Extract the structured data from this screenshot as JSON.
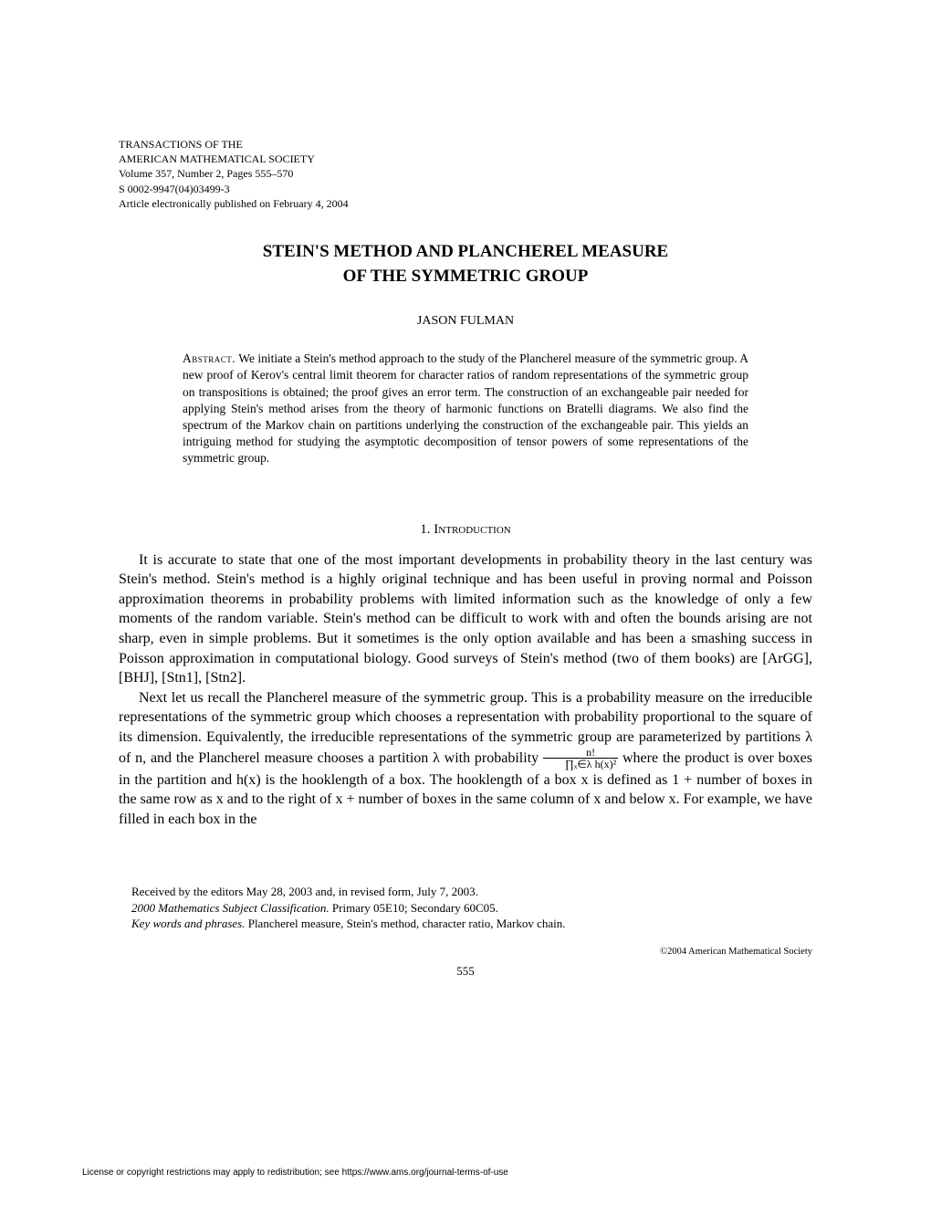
{
  "header": {
    "line1": "TRANSACTIONS OF THE",
    "line2": "AMERICAN MATHEMATICAL SOCIETY",
    "line3": "Volume 357, Number 2, Pages 555–570",
    "line4": "S 0002-9947(04)03499-3",
    "line5": "Article electronically published on February 4, 2004"
  },
  "title": {
    "line1": "STEIN'S METHOD AND PLANCHEREL MEASURE",
    "line2": "OF THE SYMMETRIC GROUP"
  },
  "author": "JASON FULMAN",
  "abstract": {
    "label": "Abstract.",
    "text": "We initiate a Stein's method approach to the study of the Plancherel measure of the symmetric group. A new proof of Kerov's central limit theorem for character ratios of random representations of the symmetric group on transpositions is obtained; the proof gives an error term. The construction of an exchangeable pair needed for applying Stein's method arises from the theory of harmonic functions on Bratelli diagrams. We also find the spectrum of the Markov chain on partitions underlying the construction of the exchangeable pair. This yields an intriguing method for studying the asymptotic decomposition of tensor powers of some representations of the symmetric group."
  },
  "section1": {
    "number": "1.",
    "heading": "Introduction"
  },
  "para1": "It is accurate to state that one of the most important developments in probability theory in the last century was Stein's method. Stein's method is a highly original technique and has been useful in proving normal and Poisson approximation theorems in probability problems with limited information such as the knowledge of only a few moments of the random variable. Stein's method can be difficult to work with and often the bounds arising are not sharp, even in simple problems. But it sometimes is the only option available and has been a smashing success in Poisson approximation in computational biology. Good surveys of Stein's method (two of them books) are [ArGG], [BHJ], [Stn1], [Stn2].",
  "para2_a": "Next let us recall the Plancherel measure of the symmetric group. This is a probability measure on the irreducible representations of the symmetric group which chooses a representation with probability proportional to the square of its dimension. Equivalently, the irreducible representations of the symmetric group are parameterized by partitions λ of n, and the Plancherel measure chooses a partition λ with probability ",
  "para2_frac_num": "n!",
  "para2_frac_den": "∏ₓ∈λ h(x)²",
  "para2_b": " where the product is over boxes in the partition and h(x) is the hooklength of a box. The hooklength of a box x is defined as 1 + number of boxes in the same row as x and to the right of x + number of boxes in the same column of x and below x. For example, we have filled in each box in the",
  "footnotes": {
    "received": "Received by the editors May 28, 2003 and, in revised form, July 7, 2003.",
    "msc_label": "2000 Mathematics Subject Classification.",
    "msc_text": " Primary 05E10; Secondary 60C05.",
    "key_label": "Key words and phrases.",
    "key_text": " Plancherel measure, Stein's method, character ratio, Markov chain."
  },
  "copyright": "©2004 American Mathematical Society",
  "page_number": "555",
  "license": "License or copyright restrictions may apply to redistribution; see https://www.ams.org/journal-terms-of-use"
}
